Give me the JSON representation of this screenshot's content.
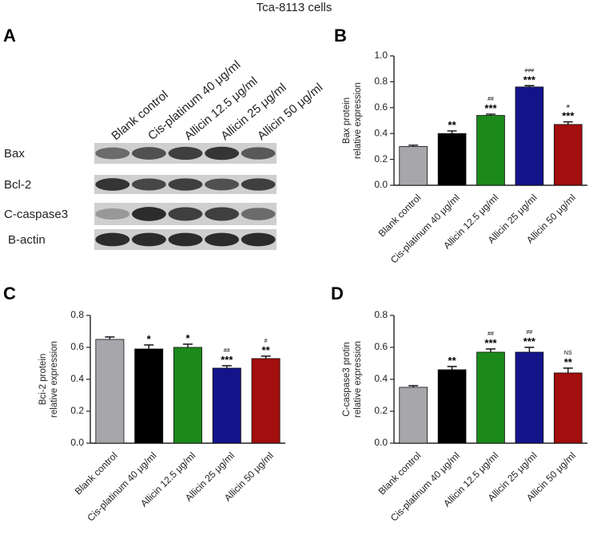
{
  "title": "Tca-8113 cells",
  "blot": {
    "panel": "A",
    "lanes": [
      "Blank control",
      "Cis-platinum 40 μg/ml",
      "Allicin 12.5 μg/ml",
      "Allicin 25 μg/ml",
      "Allicin 50 μg/ml"
    ],
    "proteins": [
      "Bax",
      "Bcl-2",
      "C-caspase3",
      "B-actin"
    ]
  },
  "chart_data": [
    {
      "type": "bar",
      "panel": "B",
      "ylabel": [
        "Bax protein",
        "relative expression"
      ],
      "categories": [
        "Blank control",
        "Cis-platinum 40 μg/ml",
        "Allicin 12.5 μg/ml",
        "Allicin 25 μg/ml",
        "Allicin 50 μg/ml"
      ],
      "values": [
        0.3,
        0.4,
        0.54,
        0.76,
        0.47
      ],
      "errors": [
        0.01,
        0.02,
        0.01,
        0.01,
        0.02
      ],
      "colors": [
        "#a7a7ab",
        "#000000",
        "#1b8a1b",
        "#14148a",
        "#a30e0e"
      ],
      "stars": [
        null,
        "**",
        "***",
        "***",
        "***"
      ],
      "hashes": [
        null,
        null,
        "##",
        "###",
        "#"
      ],
      "ylim": [
        0,
        1
      ],
      "yticks": [
        {
          "value": 0,
          "label": "0.0"
        },
        0.2,
        0.4,
        0.6,
        0.8,
        {
          "value": 1,
          "label": "1.0"
        }
      ]
    },
    {
      "type": "bar",
      "panel": "C",
      "ylabel": [
        "Bci-2 protein",
        "relative expression"
      ],
      "categories": [
        "Blank control",
        "Cis-platinum 40 μg/ml",
        "Allicin 12.5 μg/ml",
        "Allicin 25 μg/ml",
        "Allicin 50 μg/ml"
      ],
      "values": [
        0.65,
        0.59,
        0.6,
        0.47,
        0.53
      ],
      "errors": [
        0.015,
        0.025,
        0.02,
        0.015,
        0.015
      ],
      "colors": [
        "#a7a7ab",
        "#000000",
        "#1b8a1b",
        "#14148a",
        "#a30e0e"
      ],
      "stars": [
        null,
        "*",
        "*",
        "***",
        "**"
      ],
      "hashes": [
        null,
        null,
        null,
        "##",
        "#"
      ],
      "ylim": [
        0,
        0.8
      ],
      "yticks": [
        {
          "value": 0,
          "label": "0.0"
        },
        0.2,
        0.4,
        0.6,
        0.8
      ]
    },
    {
      "type": "bar",
      "panel": "D",
      "ylabel": [
        "C-caspase3 protin",
        "relative expression"
      ],
      "categories": [
        "Blank control",
        "Cis-platinum 40 μg/ml",
        "Allicin 12.5 μg/ml",
        "Allicin 25 μg/ml",
        "Allicin 50 μg/ml"
      ],
      "values": [
        0.35,
        0.46,
        0.57,
        0.57,
        0.44
      ],
      "errors": [
        0.01,
        0.02,
        0.02,
        0.03,
        0.03
      ],
      "colors": [
        "#a7a7ab",
        "#000000",
        "#1b8a1b",
        "#14148a",
        "#a30e0e"
      ],
      "stars": [
        null,
        "**",
        "***",
        "***",
        "**"
      ],
      "hashes": [
        null,
        null,
        "##",
        "##",
        "NS"
      ],
      "ylim": [
        0,
        0.8
      ],
      "yticks": [
        {
          "value": 0,
          "label": "0.0"
        },
        0.2,
        0.4,
        0.6,
        0.8
      ]
    }
  ]
}
